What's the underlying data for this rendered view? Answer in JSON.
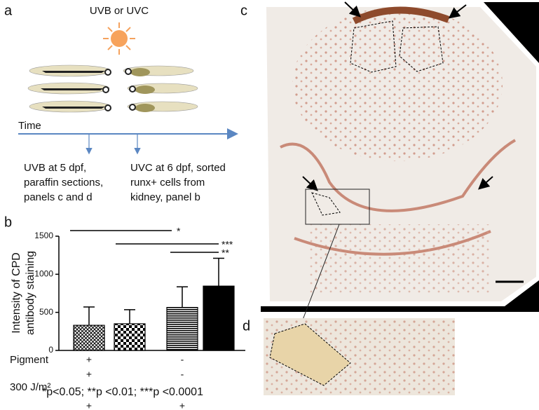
{
  "panel_a": {
    "label": "a",
    "title": "UVB or UVC",
    "axis_label": "Time",
    "notes": [
      [
        "UVB at 5 dpf,",
        "paraffin sections,",
        "panels c and d"
      ],
      [
        "UVC at 6 dpf, sorted",
        "runx+ cells from",
        "kidney, panel b"
      ]
    ]
  },
  "panel_b": {
    "label": "b"
  },
  "panel_c": {
    "label": "c"
  },
  "panel_d": {
    "label": "d"
  },
  "chart_data": {
    "type": "bar",
    "y_label": [
      "Intensity of CPD",
      "antibody staining"
    ],
    "categories": [
      null,
      null,
      null,
      null
    ],
    "values": [
      330,
      350,
      565,
      845
    ],
    "errors": [
      240,
      185,
      270,
      365
    ],
    "fills": [
      "crosshatch",
      "checker",
      "hlines",
      "solid"
    ],
    "ylim": [
      0,
      1500
    ],
    "yticks": [
      0,
      500,
      1000,
      1500
    ],
    "significance": [
      "*",
      "***",
      "**"
    ],
    "conditions": [
      {
        "label": "Pigment",
        "marks": [
          "+",
          "-"
        ]
      },
      {
        "marks": [
          "+",
          "-"
        ]
      },
      {
        "label": "300 J/m²",
        "marks": [
          "+",
          "+"
        ]
      }
    ],
    "footnote": "*p<0.05; **p <0.01; ***p <0.0001"
  }
}
